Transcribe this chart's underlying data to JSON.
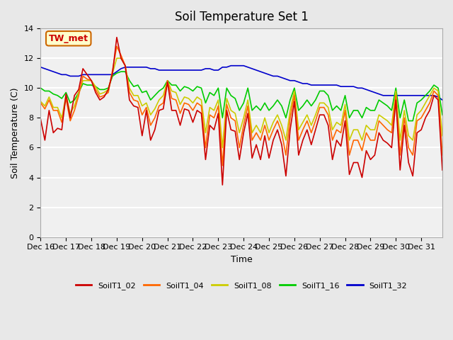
{
  "title": "Soil Temperature Set 1",
  "xlabel": "Time",
  "ylabel": "Soil Temperature (C)",
  "ylim": [
    0,
    14
  ],
  "yticks": [
    0,
    2,
    4,
    6,
    8,
    10,
    12,
    14
  ],
  "annotation": "TW_met",
  "annotation_color": "#cc0000",
  "annotation_bg": "#ffffcc",
  "annotation_border": "#cc6600",
  "x_labels": [
    "Dec 16",
    "Dec 17",
    "Dec 18",
    "Dec 19",
    "Dec 20",
    "Dec 21",
    "Dec 22",
    "Dec 23",
    "Dec 24",
    "Dec 25",
    "Dec 26",
    "Dec 27",
    "Dec 28",
    "Dec 29",
    "Dec 30",
    "Dec 31"
  ],
  "series": {
    "SoilT1_02": {
      "color": "#cc0000",
      "data": [
        7.9,
        6.5,
        8.5,
        7.0,
        7.3,
        7.2,
        9.6,
        8.0,
        9.5,
        9.9,
        11.3,
        10.9,
        10.5,
        9.7,
        9.2,
        9.4,
        9.9,
        11.0,
        13.4,
        12.0,
        11.5,
        9.2,
        8.8,
        8.7,
        6.8,
        8.5,
        6.5,
        7.2,
        8.5,
        8.6,
        10.4,
        8.5,
        8.5,
        7.5,
        8.6,
        8.5,
        7.7,
        8.5,
        8.3,
        5.2,
        7.5,
        7.2,
        8.3,
        3.5,
        8.5,
        7.2,
        7.1,
        5.2,
        7.0,
        8.3,
        5.3,
        6.2,
        5.2,
        6.8,
        5.3,
        6.5,
        7.2,
        6.2,
        4.1,
        7.2,
        9.1,
        5.5,
        6.5,
        7.2,
        6.2,
        7.2,
        8.2,
        8.2,
        7.5,
        5.2,
        6.5,
        6.1,
        7.8,
        4.2,
        5.0,
        5.0,
        4.0,
        5.8,
        5.2,
        5.5,
        7.0,
        6.5,
        6.3,
        6.0,
        9.2,
        4.5,
        7.5,
        5.0,
        4.1,
        7.0,
        7.2,
        8.0,
        8.5,
        9.5,
        9.2,
        4.5
      ]
    },
    "SoilT1_04": {
      "color": "#ff6600",
      "data": [
        9.0,
        8.6,
        9.2,
        8.5,
        8.5,
        7.7,
        9.3,
        7.8,
        8.5,
        9.5,
        10.8,
        10.6,
        10.5,
        9.9,
        9.4,
        9.5,
        9.7,
        11.2,
        12.8,
        12.2,
        11.5,
        9.7,
        9.2,
        9.1,
        8.2,
        8.7,
        7.5,
        8.0,
        8.8,
        9.0,
        10.5,
        9.3,
        9.2,
        8.3,
        9.0,
        8.9,
        8.5,
        9.0,
        8.8,
        6.0,
        8.2,
        8.0,
        8.8,
        4.8,
        8.9,
        8.0,
        7.8,
        6.0,
        7.5,
        8.8,
        6.5,
        7.0,
        6.5,
        7.5,
        6.5,
        7.2,
        7.8,
        7.0,
        5.5,
        8.0,
        9.5,
        6.5,
        7.2,
        7.8,
        7.0,
        7.8,
        8.7,
        8.7,
        8.2,
        6.5,
        7.2,
        7.0,
        8.5,
        5.5,
        6.5,
        6.5,
        5.8,
        7.0,
        6.5,
        6.5,
        7.8,
        7.5,
        7.2,
        7.0,
        9.5,
        5.5,
        8.0,
        6.0,
        5.5,
        7.8,
        8.0,
        8.5,
        9.0,
        9.8,
        9.5,
        5.5
      ]
    },
    "SoilT1_08": {
      "color": "#cccc00",
      "data": [
        9.1,
        8.8,
        9.4,
        8.7,
        8.7,
        8.0,
        9.5,
        8.3,
        8.8,
        9.7,
        10.5,
        10.5,
        10.5,
        10.1,
        9.6,
        9.7,
        9.9,
        11.0,
        12.0,
        12.0,
        11.5,
        10.0,
        9.5,
        9.5,
        8.8,
        9.0,
        8.2,
        8.6,
        9.2,
        9.5,
        10.5,
        9.8,
        9.7,
        8.9,
        9.4,
        9.3,
        9.0,
        9.4,
        9.2,
        7.0,
        8.7,
        8.5,
        9.2,
        6.0,
        9.3,
        8.5,
        8.3,
        7.0,
        8.0,
        9.2,
        7.0,
        7.5,
        7.0,
        8.0,
        7.0,
        7.7,
        8.2,
        7.5,
        6.5,
        8.5,
        9.8,
        7.2,
        7.7,
        8.2,
        7.5,
        8.2,
        9.0,
        9.0,
        8.7,
        7.2,
        7.7,
        7.5,
        8.9,
        6.5,
        7.2,
        7.2,
        6.5,
        7.5,
        7.2,
        7.2,
        8.2,
        8.0,
        7.8,
        7.5,
        9.8,
        6.5,
        8.5,
        6.8,
        6.5,
        8.2,
        8.5,
        9.0,
        9.5,
        10.0,
        9.8,
        6.8
      ]
    },
    "SoilT1_16": {
      "color": "#00cc00",
      "data": [
        10.0,
        9.8,
        9.8,
        9.6,
        9.5,
        9.3,
        9.7,
        9.0,
        9.2,
        9.7,
        10.3,
        10.2,
        10.2,
        10.1,
        9.9,
        9.9,
        10.0,
        10.8,
        11.0,
        11.1,
        11.1,
        10.5,
        10.1,
        10.2,
        9.7,
        9.8,
        9.2,
        9.5,
        9.8,
        10.0,
        10.5,
        10.2,
        10.2,
        9.8,
        10.1,
        10.0,
        9.8,
        10.1,
        10.0,
        9.0,
        9.7,
        9.5,
        10.0,
        8.0,
        10.0,
        9.5,
        9.3,
        8.5,
        9.0,
        10.0,
        8.5,
        8.8,
        8.5,
        9.0,
        8.5,
        8.8,
        9.2,
        8.8,
        8.0,
        9.2,
        10.0,
        8.5,
        8.8,
        9.2,
        8.8,
        9.2,
        9.8,
        9.8,
        9.5,
        8.5,
        8.8,
        8.5,
        9.5,
        8.0,
        8.5,
        8.5,
        8.0,
        8.7,
        8.5,
        8.5,
        9.2,
        9.0,
        8.8,
        8.5,
        10.0,
        8.0,
        9.2,
        7.8,
        7.8,
        9.0,
        9.2,
        9.5,
        9.8,
        10.2,
        10.0,
        8.2
      ]
    },
    "SoilT1_32": {
      "color": "#0000cc",
      "data": [
        11.4,
        11.3,
        11.2,
        11.1,
        11.0,
        10.9,
        10.9,
        10.8,
        10.8,
        10.8,
        10.9,
        10.9,
        10.9,
        10.9,
        10.9,
        10.9,
        10.9,
        10.9,
        11.1,
        11.3,
        11.4,
        11.4,
        11.4,
        11.4,
        11.4,
        11.4,
        11.3,
        11.3,
        11.2,
        11.2,
        11.2,
        11.2,
        11.2,
        11.2,
        11.2,
        11.2,
        11.2,
        11.2,
        11.2,
        11.3,
        11.3,
        11.2,
        11.2,
        11.4,
        11.4,
        11.5,
        11.5,
        11.5,
        11.5,
        11.4,
        11.3,
        11.2,
        11.1,
        11.0,
        10.9,
        10.8,
        10.8,
        10.7,
        10.6,
        10.5,
        10.5,
        10.4,
        10.3,
        10.3,
        10.2,
        10.2,
        10.2,
        10.2,
        10.2,
        10.2,
        10.2,
        10.1,
        10.1,
        10.1,
        10.1,
        10.0,
        10.0,
        9.9,
        9.8,
        9.7,
        9.6,
        9.5,
        9.5,
        9.5,
        9.5,
        9.5,
        9.5,
        9.5,
        9.5,
        9.5,
        9.5,
        9.5,
        9.5,
        9.5,
        9.4,
        9.2
      ]
    }
  },
  "n_points": 96,
  "bg_color": "#e8e8e8",
  "plot_bg_color": "#f0f0f0",
  "grid_color": "#ffffff",
  "font_family": "DejaVu Sans"
}
